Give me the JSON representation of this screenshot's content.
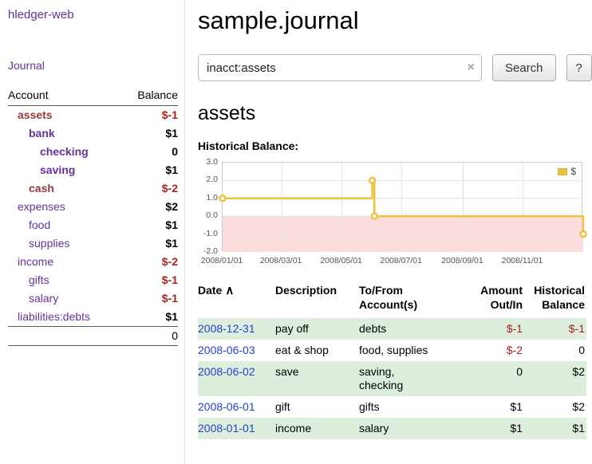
{
  "app": {
    "title": "hledger-web",
    "nav": {
      "journal": "Journal"
    }
  },
  "sidebar": {
    "accounts": {
      "account_header": "Account",
      "balance_header": "Balance",
      "rows": [
        {
          "account": "assets",
          "level": 0,
          "bold": true,
          "negative_name": true,
          "balance": "$-1",
          "negative_balance": true
        },
        {
          "account": "bank",
          "level": 1,
          "bold": true,
          "negative_name": false,
          "balance": "$1",
          "negative_balance": false
        },
        {
          "account": "checking",
          "level": 2,
          "bold": true,
          "negative_name": false,
          "balance": "0",
          "negative_balance": false
        },
        {
          "account": "saving",
          "level": 2,
          "bold": true,
          "negative_name": false,
          "balance": "$1",
          "negative_balance": false
        },
        {
          "account": "cash",
          "level": 1,
          "bold": true,
          "negative_name": true,
          "balance": "$-2",
          "negative_balance": true
        },
        {
          "account": "expenses",
          "level": 0,
          "bold": false,
          "negative_name": false,
          "balance": "$2",
          "negative_balance": false
        },
        {
          "account": "food",
          "level": 1,
          "bold": false,
          "negative_name": false,
          "balance": "$1",
          "negative_balance": false
        },
        {
          "account": "supplies",
          "level": 1,
          "bold": false,
          "negative_name": false,
          "balance": "$1",
          "negative_balance": false
        },
        {
          "account": "income",
          "level": 0,
          "bold": false,
          "negative_name": false,
          "balance": "$-2",
          "negative_balance": true
        },
        {
          "account": "gifts",
          "level": 1,
          "bold": false,
          "negative_name": false,
          "balance": "$-1",
          "negative_balance": true
        },
        {
          "account": "salary",
          "level": 1,
          "bold": false,
          "negative_name": false,
          "balance": "$-1",
          "negative_balance": true
        },
        {
          "account": "liabilities:debts",
          "level": 0,
          "bold": false,
          "negative_name": false,
          "balance": "$1",
          "negative_balance": false
        }
      ],
      "total": "0"
    }
  },
  "main": {
    "title": "sample.journal",
    "search": {
      "value": "inacct:assets",
      "clear_icon": "×",
      "button": "Search",
      "help_button": "?"
    },
    "section_title": "assets",
    "chart_label": "Historical Balance:"
  },
  "chart_data": {
    "type": "line",
    "title": "Historical Balance",
    "step": true,
    "ylim": [
      -2,
      3
    ],
    "y_ticks": [
      "3.0",
      "2.0",
      "1.0",
      "0.0",
      "-1.0",
      "-2.0"
    ],
    "y_tick_values": [
      3,
      2,
      1,
      0,
      -1,
      -2
    ],
    "x_ticks": [
      {
        "label": "2008/01/01",
        "t": 0.0
      },
      {
        "label": "2008/03/01",
        "t": 0.164
      },
      {
        "label": "2008/05/01",
        "t": 0.331
      },
      {
        "label": "2008/07/01",
        "t": 0.497
      },
      {
        "label": "2008/09/01",
        "t": 0.667
      },
      {
        "label": "2008/11/01",
        "t": 0.833
      }
    ],
    "series": [
      {
        "name": "$",
        "color": "#edc240",
        "points": [
          {
            "date": "2008-01-01",
            "t": 0.0,
            "value": 1
          },
          {
            "date": "2008-06-01",
            "t": 0.415,
            "value": 2
          },
          {
            "date": "2008-06-03",
            "t": 0.421,
            "value": 0
          },
          {
            "date": "2008-12-31",
            "t": 1.0,
            "value": -1
          }
        ]
      }
    ],
    "negative_region_color": "#fbdddd",
    "legend": {
      "label": "$",
      "swatch_color": "#edc240",
      "position": "top-right"
    },
    "grid": true
  },
  "register": {
    "headers": {
      "date": "Date",
      "sort_icon": "∧",
      "description": "Description",
      "account_l1": "To/From",
      "account_l2": "Account(s)",
      "amount_l1": "Amount",
      "amount_l2": "Out/In",
      "balance_l1": "Historical",
      "balance_l2": "Balance"
    },
    "rows": [
      {
        "date": "2008-12-31",
        "description": "pay off",
        "accounts": "debts",
        "amount": "$-1",
        "amount_negative": true,
        "balance": "$-1",
        "balance_negative": true,
        "stripe": true
      },
      {
        "date": "2008-06-03",
        "description": "eat & shop",
        "accounts": "food, supplies",
        "amount": "$-2",
        "amount_negative": true,
        "balance": "0",
        "balance_negative": false,
        "stripe": false
      },
      {
        "date": "2008-06-02",
        "description": "save",
        "accounts": "saving,\nchecking",
        "amount": "0",
        "amount_negative": false,
        "balance": "$2",
        "balance_negative": false,
        "stripe": true
      },
      {
        "date": "2008-06-01",
        "description": "gift",
        "accounts": "gifts",
        "amount": "$1",
        "amount_negative": false,
        "balance": "$2",
        "balance_negative": false,
        "stripe": false
      },
      {
        "date": "2008-01-01",
        "description": "income",
        "accounts": "salary",
        "amount": "$1",
        "amount_negative": false,
        "balance": "$1",
        "balance_negative": false,
        "stripe": true
      }
    ]
  },
  "colors": {
    "link_purple": "#663399",
    "link_blue": "#2244cc",
    "negative_red": "#a42222",
    "negative_account_name": "#953b39",
    "stripe_green": "#ddeedd",
    "chart_line": "#edc240",
    "chart_negative_bg": "#fbdddd"
  }
}
